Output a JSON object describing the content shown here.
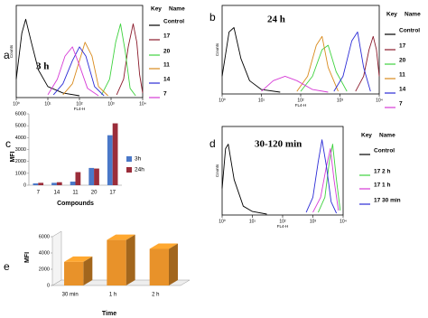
{
  "chart_data": [
    {
      "type": "hist",
      "panel": "a",
      "annotation": "3 h",
      "xlabel": "FL4-H",
      "ylabel": "Counts",
      "legend_title": [
        "Key",
        "Name"
      ],
      "xscale": "log",
      "xlim": [
        1,
        10000
      ],
      "xticks": [
        {
          "value": 1,
          "label": "10⁰"
        },
        {
          "value": 10,
          "label": "10¹"
        },
        {
          "value": 100,
          "label": "10²"
        },
        {
          "value": 1000,
          "label": "10³"
        },
        {
          "value": 10000,
          "label": "10⁴"
        }
      ],
      "ylim": [
        0,
        100
      ],
      "series": [
        {
          "name": "Control",
          "color": "#000000",
          "x": [
            1,
            1.5,
            2,
            3,
            5,
            10,
            30,
            100
          ],
          "values": [
            20,
            70,
            85,
            60,
            30,
            12,
            5,
            2
          ]
        },
        {
          "name": "17",
          "color": "#8b1a2b",
          "x": [
            1500,
            2500,
            3500,
            5000,
            6500,
            8000,
            10000
          ],
          "values": [
            3,
            20,
            55,
            80,
            60,
            25,
            5
          ]
        },
        {
          "name": "20",
          "color": "#3ed23e",
          "x": [
            500,
            900,
            1400,
            2000,
            2800,
            4000,
            6000
          ],
          "values": [
            3,
            20,
            60,
            80,
            50,
            10,
            2
          ]
        },
        {
          "name": "11",
          "color": "#d98a1c",
          "x": [
            30,
            60,
            100,
            150,
            250,
            400,
            800
          ],
          "values": [
            3,
            15,
            40,
            60,
            45,
            12,
            2
          ]
        },
        {
          "name": "14",
          "color": "#2b2bd6",
          "x": [
            15,
            30,
            60,
            100,
            160,
            300,
            600
          ],
          "values": [
            3,
            15,
            40,
            55,
            45,
            12,
            2
          ]
        },
        {
          "name": "7",
          "color": "#d63ad6",
          "x": [
            10,
            20,
            35,
            60,
            100,
            180,
            400
          ],
          "values": [
            3,
            20,
            45,
            55,
            35,
            10,
            2
          ]
        }
      ]
    },
    {
      "type": "hist",
      "panel": "b",
      "annotation": "24 h",
      "xlabel": "FL4-H",
      "ylabel": "Counts",
      "legend_title": [
        "Key",
        "Name"
      ],
      "xscale": "log",
      "xlim": [
        1,
        10000
      ],
      "xticks": [
        {
          "value": 1,
          "label": "10⁰"
        },
        {
          "value": 10,
          "label": "10¹"
        },
        {
          "value": 100,
          "label": "10²"
        },
        {
          "value": 1000,
          "label": "10³"
        },
        {
          "value": 10000,
          "label": "10⁴"
        }
      ],
      "ylim": [
        0,
        100
      ],
      "series": [
        {
          "name": "Control",
          "color": "#000000",
          "x": [
            1,
            1.5,
            2,
            3,
            5,
            10,
            30
          ],
          "values": [
            20,
            70,
            75,
            40,
            15,
            5,
            2
          ]
        },
        {
          "name": "17",
          "color": "#8b1a2b",
          "x": [
            2500,
            4000,
            5500,
            7000,
            8500,
            10000
          ],
          "values": [
            3,
            20,
            50,
            65,
            50,
            20
          ]
        },
        {
          "name": "20",
          "color": "#3ed23e",
          "x": [
            100,
            200,
            350,
            500,
            800,
            1500
          ],
          "values": [
            3,
            20,
            50,
            55,
            25,
            3
          ]
        },
        {
          "name": "11",
          "color": "#d98a1c",
          "x": [
            80,
            150,
            250,
            350,
            500,
            900
          ],
          "values": [
            3,
            20,
            55,
            65,
            30,
            3
          ]
        },
        {
          "name": "14",
          "color": "#2b2bd6",
          "x": [
            700,
            1200,
            2000,
            2800,
            4000,
            6000
          ],
          "values": [
            3,
            20,
            60,
            70,
            30,
            3
          ]
        },
        {
          "name": "7",
          "color": "#d63ad6",
          "x": [
            10,
            20,
            40,
            80,
            200,
            500
          ],
          "values": [
            3,
            15,
            20,
            15,
            5,
            2
          ]
        }
      ]
    },
    {
      "type": "bar",
      "panel": "c",
      "xlabel": "Compounds",
      "ylabel": "MFI",
      "categories": [
        "7",
        "14",
        "11",
        "20",
        "17"
      ],
      "ylim": [
        0,
        6000
      ],
      "yticks": [
        0,
        1000,
        2000,
        3000,
        4000,
        5000,
        6000
      ],
      "series": [
        {
          "name": "3h",
          "color": "#4a78c8",
          "values": [
            150,
            200,
            300,
            1450,
            4200
          ]
        },
        {
          "name": "24h",
          "color": "#9b2d3a",
          "values": [
            200,
            250,
            1100,
            1400,
            5200
          ]
        }
      ]
    },
    {
      "type": "hist",
      "panel": "d",
      "annotation": "30-120 min",
      "xlabel": "FL4-H",
      "ylabel": "Counts",
      "legend_title": [
        "Key",
        "Name"
      ],
      "xscale": "log",
      "xlim": [
        1,
        10000
      ],
      "xticks": [
        {
          "value": 1,
          "label": "10⁰"
        },
        {
          "value": 10,
          "label": "10¹"
        },
        {
          "value": 100,
          "label": "10²"
        },
        {
          "value": 1000,
          "label": "10³"
        },
        {
          "value": 10000,
          "label": "10⁴"
        }
      ],
      "ylim": [
        0,
        100
      ],
      "series": [
        {
          "name": "Control",
          "color": "#000000",
          "x": [
            1,
            1.3,
            1.6,
            2.5,
            5,
            10,
            30
          ],
          "values": [
            30,
            75,
            80,
            40,
            10,
            4,
            1
          ]
        },
        {
          "name": "17 2 h",
          "color": "#3ed23e",
          "x": [
            1500,
            2500,
            3500,
            4500,
            6000,
            8000
          ],
          "values": [
            3,
            20,
            60,
            80,
            40,
            5
          ]
        },
        {
          "name": "17 1 h",
          "color": "#d63ad6",
          "x": [
            1000,
            1800,
            2800,
            3800,
            5000,
            7000
          ],
          "values": [
            3,
            20,
            55,
            75,
            40,
            5
          ]
        },
        {
          "name": "17 30 min",
          "color": "#2b2bd6",
          "x": [
            600,
            1000,
            1500,
            2000,
            2800,
            4000,
            6000
          ],
          "values": [
            3,
            20,
            60,
            85,
            55,
            15,
            2
          ]
        }
      ]
    },
    {
      "type": "bar3d",
      "panel": "e",
      "xlabel": "Time",
      "ylabel": "MFI",
      "categories": [
        "30 min",
        "1 h",
        "2 h"
      ],
      "values": [
        2900,
        5600,
        4500
      ],
      "color": "#e8922a",
      "ylim": [
        0,
        6000
      ],
      "yticks": [
        0,
        2000,
        4000,
        6000
      ]
    }
  ]
}
